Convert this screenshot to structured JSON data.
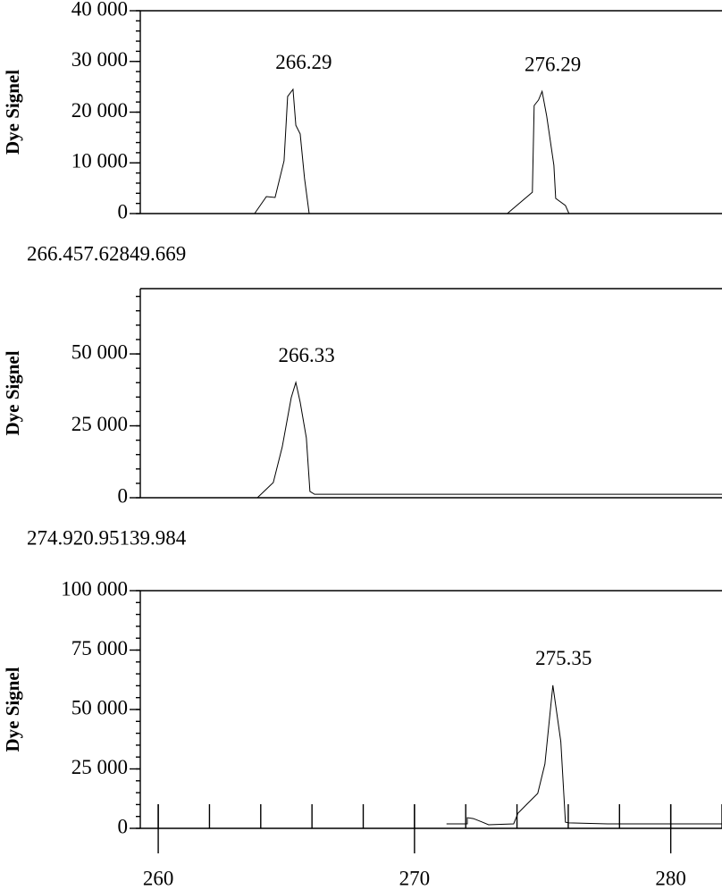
{
  "chart_data": [
    {
      "type": "line",
      "y_label": "Dye Signel",
      "color": "#000000",
      "x": [
        259.3,
        263.76,
        264.22,
        264.56,
        264.91,
        265.05,
        265.26,
        265.37,
        265.54,
        265.71,
        265.89,
        273.62,
        274.6,
        274.67,
        274.84,
        274.98,
        275.16,
        275.44,
        275.51,
        275.89,
        276.03,
        282.0
      ],
      "values": [
        0,
        0,
        3350,
        3170,
        10400,
        23100,
        24500,
        17400,
        15700,
        6900,
        0,
        0,
        4200,
        21300,
        22400,
        24100,
        19200,
        9500,
        3000,
        1600,
        0,
        0
      ],
      "annotations": [
        "266.29",
        "276.29"
      ],
      "footnote": "266.457.62849.669",
      "xlim": [
        259.3,
        282.0
      ],
      "ylim": [
        0,
        40000
      ],
      "yticks": [
        0,
        {
          "value": 10000,
          "label": "10 000"
        },
        {
          "value": 20000,
          "label": "20 000"
        },
        {
          "value": 30000,
          "label": "30 000"
        },
        {
          "value": 40000,
          "label": "40 000"
        }
      ],
      "yminor_step": 2000
    },
    {
      "type": "line",
      "y_label": "Dye Signel",
      "color": "#000000",
      "x": [
        259.3,
        263.87,
        264.49,
        264.84,
        265.19,
        265.37,
        265.54,
        265.78,
        265.92,
        266.1,
        282.0
      ],
      "values": [
        0,
        0,
        5300,
        17700,
        34800,
        40100,
        33200,
        20800,
        2200,
        1200,
        1200
      ],
      "annotations": [
        "266.33"
      ],
      "footnote": "274.920.95139.984",
      "xlim": [
        259.3,
        282.0
      ],
      "ylim": [
        0,
        72700
      ],
      "yticks": [
        0,
        {
          "value": 25000,
          "label": "25 000"
        },
        {
          "value": 50000,
          "label": "50 000"
        }
      ],
      "yminor_step": 5000
    },
    {
      "type": "line",
      "y_label": "Dye Signel",
      "color": "#000000",
      "x": [
        271.25,
        272.06,
        272.06,
        272.3,
        272.65,
        272.89,
        273.87,
        274.04,
        274.39,
        274.81,
        275.09,
        275.4,
        275.71,
        275.89,
        276.03,
        277.53,
        282.0
      ],
      "values": [
        1900,
        1900,
        4500,
        4100,
        2600,
        1500,
        1900,
        6400,
        10200,
        14700,
        27100,
        60200,
        36500,
        2600,
        2300,
        1900,
        1900
      ],
      "annotations": [
        "275.35"
      ],
      "xlim": [
        259.3,
        282.0
      ],
      "ylim": [
        0,
        100000
      ],
      "xticks": [
        260,
        270,
        280
      ],
      "xminor_step": 2,
      "yticks": [
        0,
        {
          "value": 25000,
          "label": "25 000"
        },
        {
          "value": 50000,
          "label": "50 000"
        },
        {
          "value": 75000,
          "label": "75 000"
        },
        {
          "value": 100000,
          "label": "100 000"
        }
      ],
      "yminor_step": 5000
    }
  ]
}
